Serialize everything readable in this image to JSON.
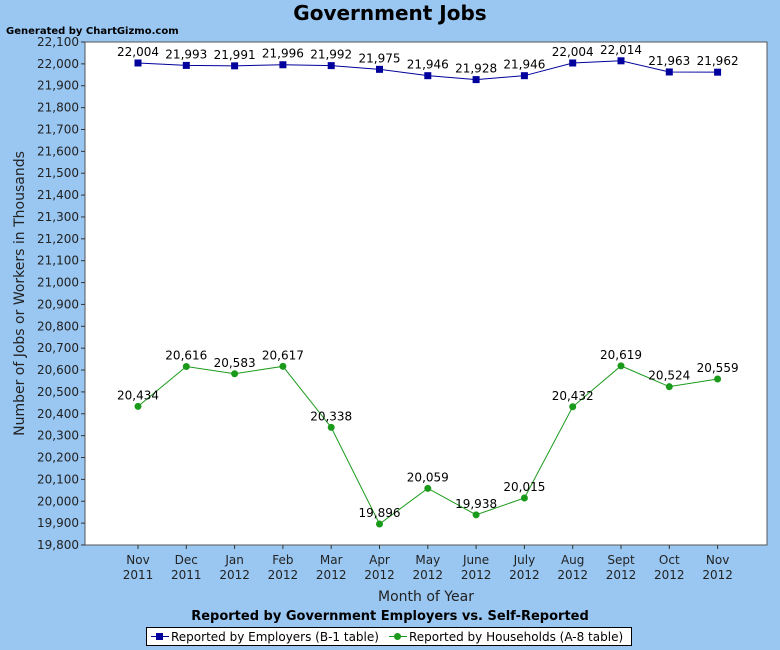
{
  "title": "Government Jobs",
  "generated_by": "Generated by ChartGizmo.com",
  "chart_data": {
    "type": "line",
    "title": "Government Jobs",
    "subtitle": "Reported by Government Employers vs. Self-Reported",
    "xlabel": "Month of Year",
    "ylabel": "Number of Jobs or Workers in Thousands",
    "ylim": [
      19800,
      22100
    ],
    "ytick_step": 100,
    "categories": [
      [
        "Nov",
        "2011"
      ],
      [
        "Dec",
        "2011"
      ],
      [
        "Jan",
        "2012"
      ],
      [
        "Feb",
        "2012"
      ],
      [
        "Mar",
        "2012"
      ],
      [
        "Apr",
        "2012"
      ],
      [
        "May",
        "2012"
      ],
      [
        "June",
        "2012"
      ],
      [
        "July",
        "2012"
      ],
      [
        "Aug",
        "2012"
      ],
      [
        "Sept",
        "2012"
      ],
      [
        "Oct",
        "2012"
      ],
      [
        "Nov",
        "2012"
      ]
    ],
    "series": [
      {
        "name": "Reported by Employers (B-1 table)",
        "color": "#00009c",
        "marker": "square",
        "values": [
          22004,
          21993,
          21991,
          21996,
          21992,
          21975,
          21946,
          21928,
          21946,
          22004,
          22014,
          21963,
          21962
        ]
      },
      {
        "name": "Reported by Households (A-8 table)",
        "color": "#1a9a1a",
        "marker": "circle",
        "values": [
          20434,
          20616,
          20583,
          20617,
          20338,
          19896,
          20059,
          19938,
          20015,
          20432,
          20619,
          20524,
          20559
        ]
      }
    ],
    "grid": false,
    "legend_position": "bottom"
  }
}
